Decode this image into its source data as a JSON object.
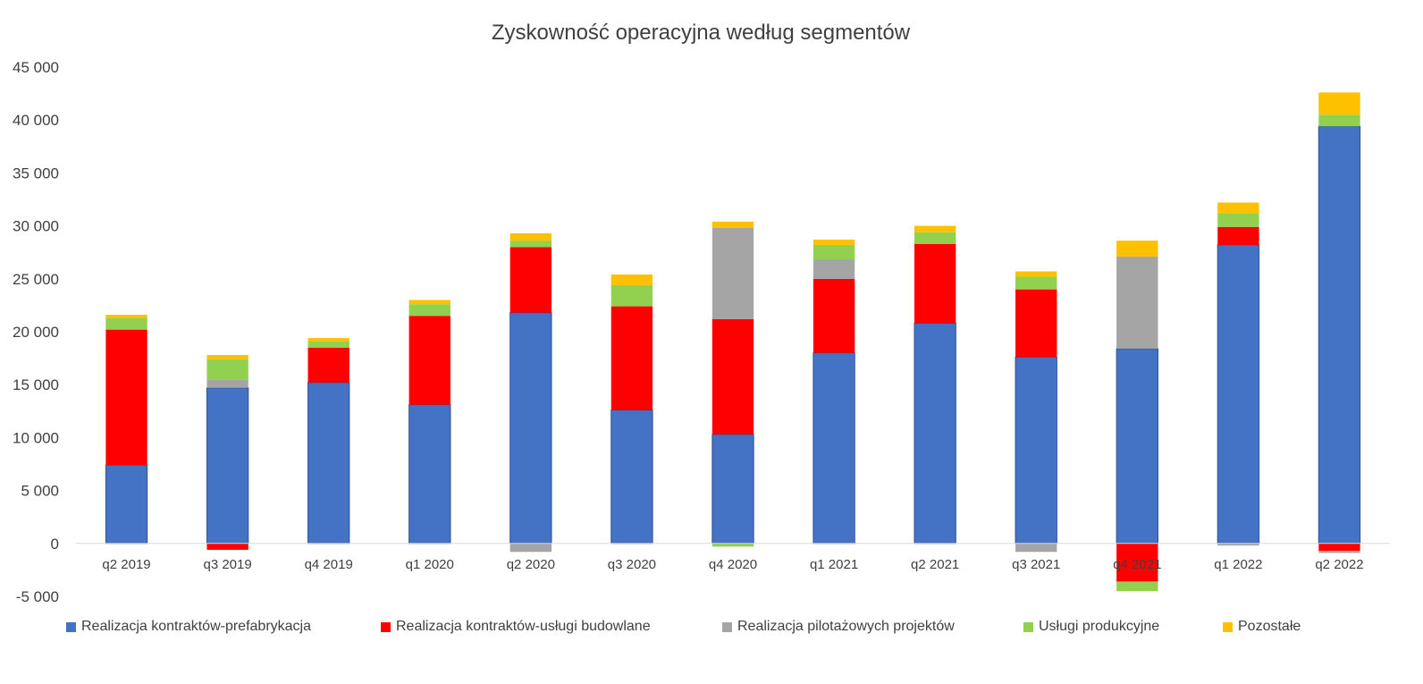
{
  "chart_data": {
    "type": "bar",
    "stacked": true,
    "title": "Zyskowność operacyjna według segmentów",
    "xlabel": "",
    "ylabel": "",
    "ylim": [
      -5000,
      45000
    ],
    "yticks": [
      -5000,
      0,
      5000,
      10000,
      15000,
      20000,
      25000,
      30000,
      35000,
      40000,
      45000
    ],
    "ytick_labels": [
      "-5 000",
      "0",
      "5 000",
      "10 000",
      "15 000",
      "20 000",
      "25 000",
      "30 000",
      "35 000",
      "40 000",
      "45 000"
    ],
    "grid": false,
    "legend_position": "bottom",
    "categories": [
      "q2 2019",
      "q3 2019",
      "q4 2019",
      "q1 2020",
      "q2 2020",
      "q3 2020",
      "q4 2020",
      "q1 2021",
      "q2 2021",
      "q3 2021",
      "q4 2021",
      "q1 2022",
      "q2 2022"
    ],
    "series": [
      {
        "name": "Realizacja kontraktów-prefabrykacja",
        "color": "#4472C4",
        "values": [
          7400,
          14700,
          15200,
          13100,
          21800,
          12600,
          10300,
          18000,
          20800,
          17600,
          18400,
          28200,
          39400
        ]
      },
      {
        "name": "Realizacja kontraktów-usługi budowlane",
        "color": "#FF0000",
        "values": [
          12800,
          -600,
          3300,
          8400,
          6200,
          9800,
          10900,
          7000,
          7500,
          6400,
          -3600,
          1700,
          -700
        ]
      },
      {
        "name": "Realizacja pilotażowych projektów",
        "color": "#A5A5A5",
        "values": [
          0,
          800,
          0,
          0,
          -800,
          0,
          8600,
          1800,
          0,
          -800,
          8700,
          -200,
          -200
        ]
      },
      {
        "name": "Usługi produkcyjne",
        "color": "#92D050",
        "values": [
          1100,
          1900,
          600,
          1100,
          600,
          2000,
          -300,
          1400,
          1100,
          1200,
          -900,
          1300,
          1100
        ]
      },
      {
        "name": "Pozostałe",
        "color": "#FFC000",
        "values": [
          300,
          400,
          300,
          400,
          700,
          1000,
          600,
          500,
          600,
          500,
          1500,
          1000,
          2100
        ]
      }
    ]
  }
}
